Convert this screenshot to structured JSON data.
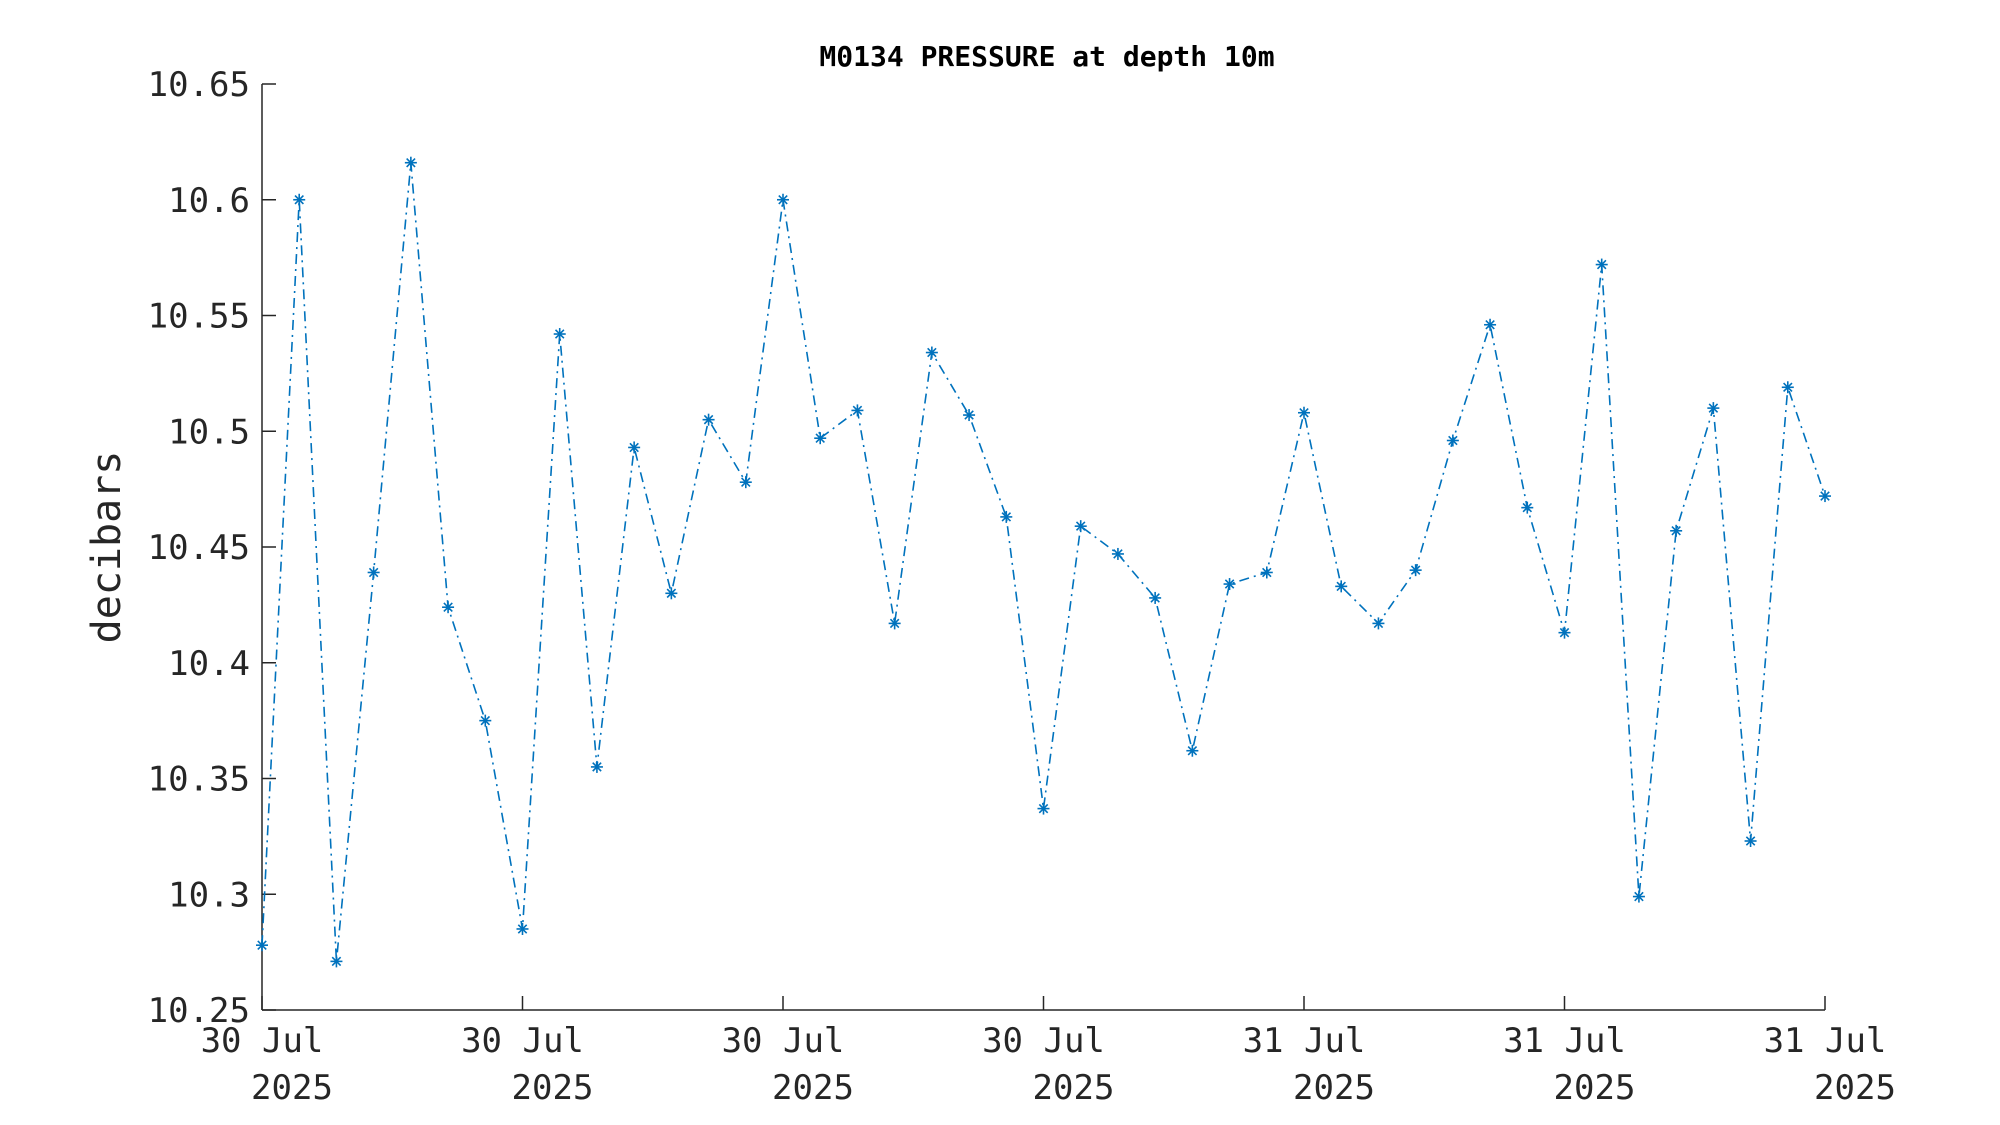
{
  "chart_data": {
    "type": "line",
    "title": "M0134 PRESSURE at depth 10m",
    "xlabel": "",
    "ylabel": "decibars",
    "ylim": [
      10.25,
      10.65
    ],
    "yticks": [
      10.25,
      10.3,
      10.35,
      10.4,
      10.45,
      10.5,
      10.55,
      10.6,
      10.65
    ],
    "ytick_labels": [
      "10.25",
      "10.3",
      "10.35",
      "10.4",
      "10.45",
      "10.5",
      "10.55",
      "10.6",
      "10.65"
    ],
    "xticks": [
      {
        "line1": "30 Jul",
        "line2": "2025"
      },
      {
        "line1": "30 Jul",
        "line2": "2025"
      },
      {
        "line1": "30 Jul",
        "line2": "2025"
      },
      {
        "line1": "30 Jul",
        "line2": "2025"
      },
      {
        "line1": "31 Jul",
        "line2": "2025"
      },
      {
        "line1": "31 Jul",
        "line2": "2025"
      },
      {
        "line1": "31 Jul",
        "line2": "2025"
      }
    ],
    "line_style": "dash-dot",
    "marker": "asterisk",
    "color": "#0072BD",
    "grid": false,
    "series": [
      {
        "values": [
          10.278,
          10.6,
          10.271,
          10.439,
          10.616,
          10.424,
          10.375,
          10.285,
          10.542,
          10.355,
          10.493,
          10.43,
          10.505,
          10.478,
          10.6,
          10.497,
          10.509,
          10.417,
          10.534,
          10.507,
          10.463,
          10.337,
          10.459,
          10.447,
          10.428,
          10.362,
          10.434,
          10.439,
          10.508,
          10.433,
          10.417,
          10.44,
          10.496,
          10.546,
          10.467,
          10.413,
          10.572,
          10.299,
          10.457,
          10.51,
          10.323,
          10.519,
          10.472
        ]
      }
    ]
  }
}
